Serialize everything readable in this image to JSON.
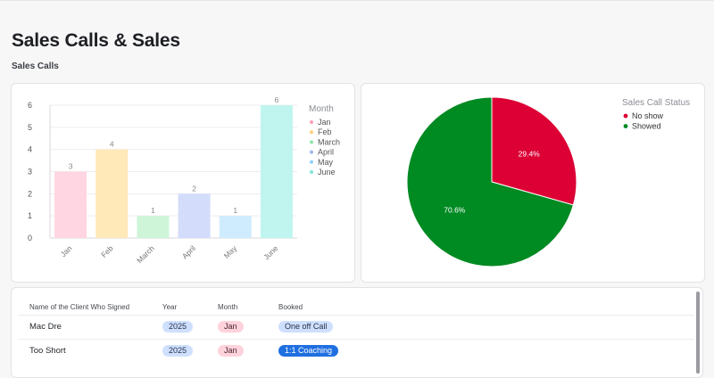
{
  "page": {
    "title": "Sales Calls & Sales",
    "section_title": "Sales Calls"
  },
  "chart_data": [
    {
      "type": "bar",
      "categories": [
        "Jan",
        "Feb",
        "March",
        "April",
        "May",
        "June"
      ],
      "values": [
        3,
        4,
        1,
        2,
        1,
        6
      ],
      "colors": [
        "#ffd6e1",
        "#ffe9b8",
        "#cff5d9",
        "#d3ddfb",
        "#cfecff",
        "#c0f5ef"
      ],
      "ylim": [
        0,
        6
      ],
      "yticks": [
        0,
        1,
        2,
        3,
        4,
        5,
        6
      ],
      "grid": true,
      "legend": {
        "title": "Month",
        "position": "right",
        "dot_colors": [
          "#ff9fb6",
          "#ffd07a",
          "#90e5a8",
          "#9fb4f4",
          "#8fd3ff",
          "#7fe6d9"
        ]
      }
    },
    {
      "type": "pie",
      "categories": [
        "No show",
        "Showed"
      ],
      "values": [
        29.4,
        70.6
      ],
      "labels": [
        "29.4%",
        "70.6%"
      ],
      "colors": [
        "#dc0035",
        "#008a22"
      ],
      "legend": {
        "title": "Sales Call Status",
        "position": "top-right"
      }
    }
  ],
  "table": {
    "columns": [
      "Name of the Client Who Signed",
      "Year",
      "Month",
      "Booked"
    ],
    "rows": [
      {
        "name": "Mac Dre",
        "year": "2025",
        "month": "Jan",
        "booked": "One off Call",
        "booked_style": "light"
      },
      {
        "name": "Too Short",
        "year": "2025",
        "month": "Jan",
        "booked": "1:1 Coaching",
        "booked_style": "dark"
      }
    ]
  }
}
